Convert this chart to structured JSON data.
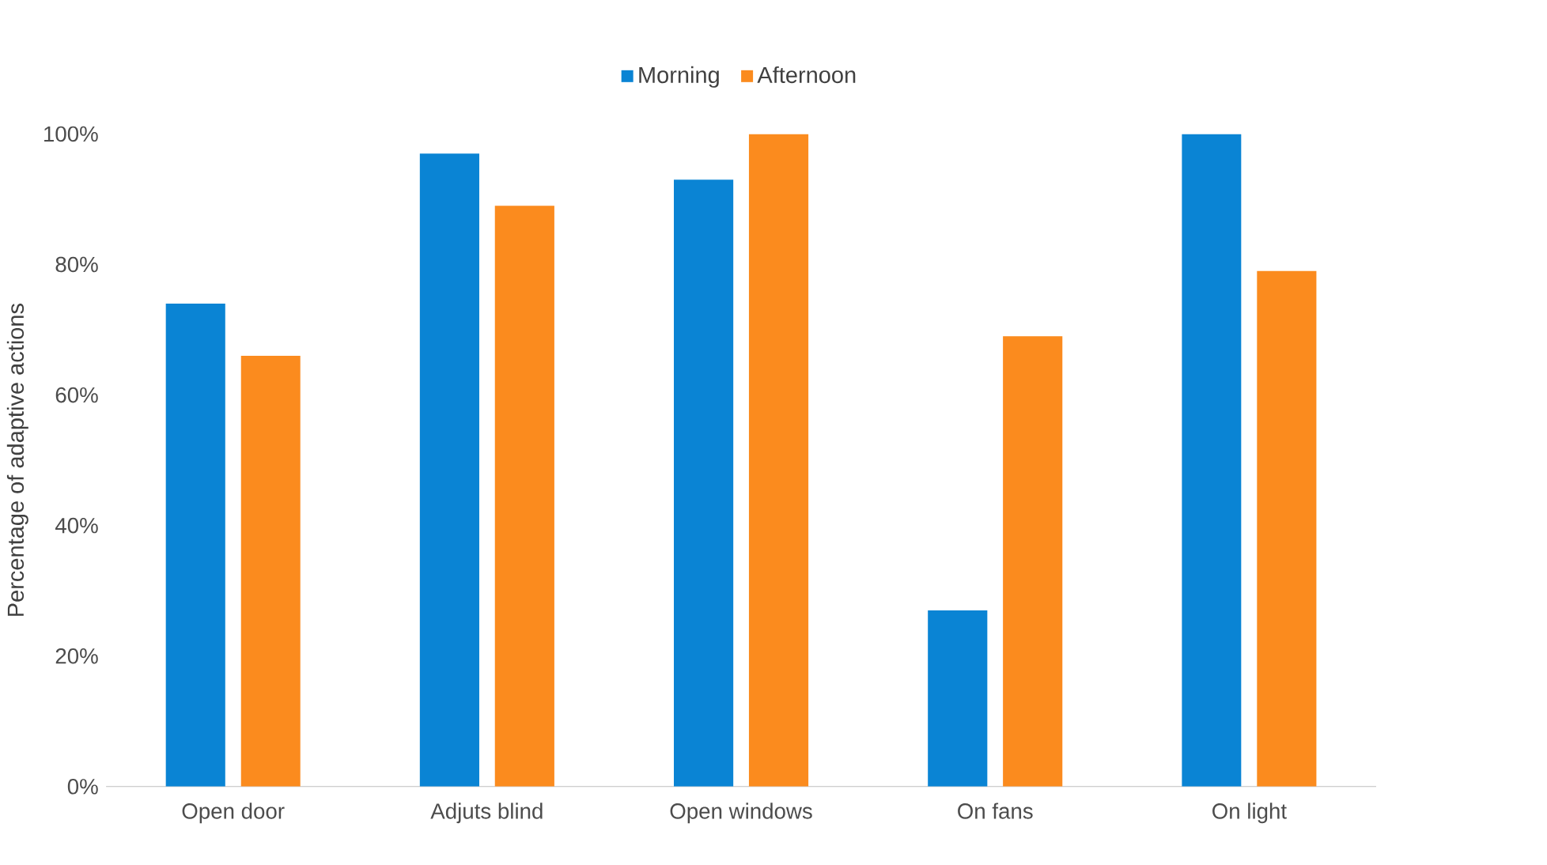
{
  "chart_data": {
    "type": "bar",
    "ylabel": "Percentage of adaptive actions",
    "categories": [
      "Open door",
      "Adjuts blind",
      "Open windows",
      "On fans",
      "On light"
    ],
    "series": [
      {
        "name": "Morning",
        "color": "#0a84d4",
        "values": [
          74,
          97,
          93,
          27,
          100
        ]
      },
      {
        "name": "Afternoon",
        "color": "#fb8b1e",
        "values": [
          66,
          89,
          100,
          69,
          79
        ]
      }
    ],
    "ylim": [
      0,
      100
    ],
    "yticks": [
      {
        "value": 0,
        "label": "0%"
      },
      {
        "value": 20,
        "label": "20%"
      },
      {
        "value": 40,
        "label": "40%"
      },
      {
        "value": 60,
        "label": "60%"
      },
      {
        "value": 80,
        "label": "80%"
      },
      {
        "value": 100,
        "label": "100%"
      }
    ],
    "legend": "top"
  }
}
